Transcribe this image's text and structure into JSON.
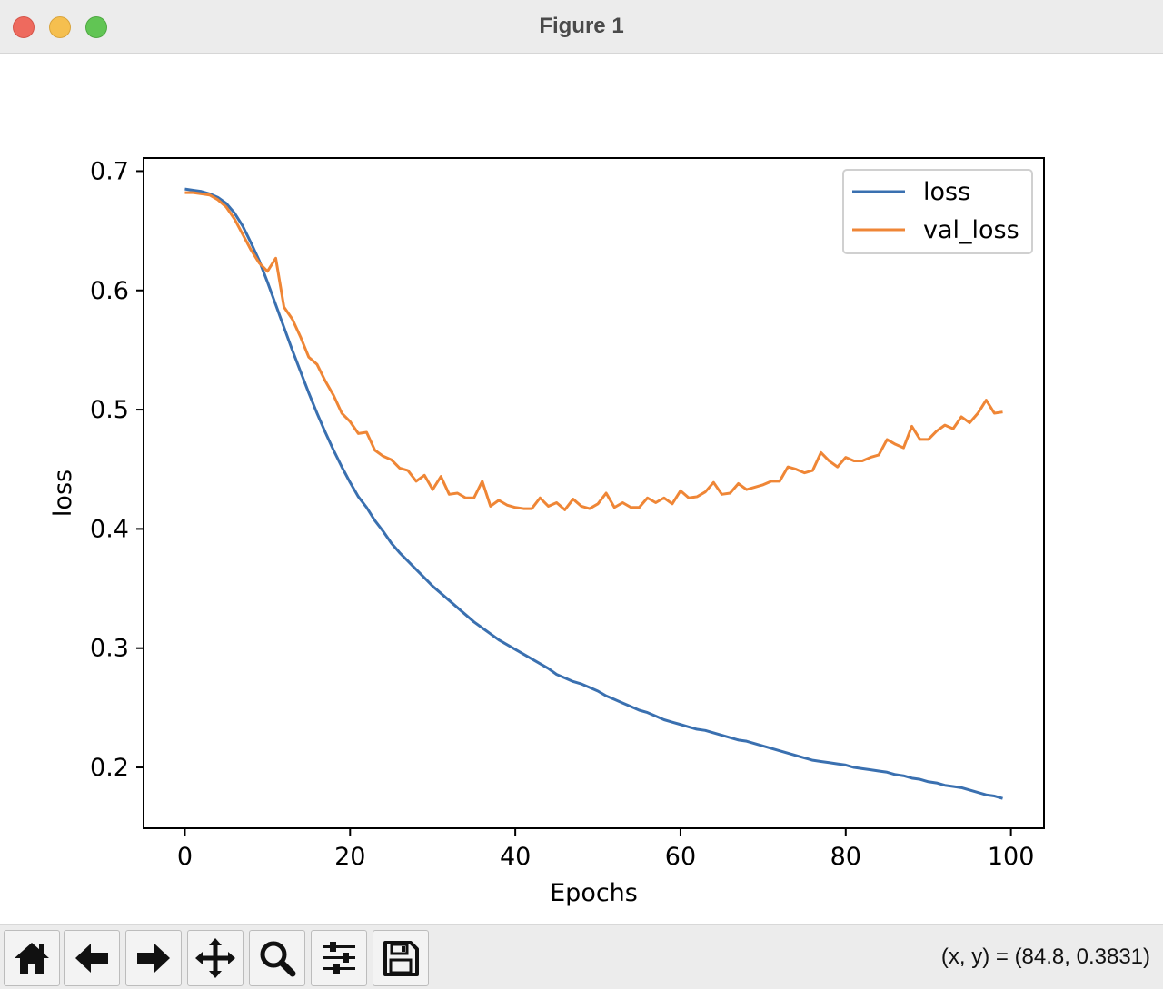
{
  "window": {
    "title": "Figure 1"
  },
  "toolbar": {
    "buttons": [
      {
        "icon": "home-icon",
        "name": "home-button"
      },
      {
        "icon": "arrow-left-icon",
        "name": "back-button"
      },
      {
        "icon": "arrow-right-icon",
        "name": "forward-button"
      },
      {
        "icon": "move-icon",
        "name": "pan-button"
      },
      {
        "icon": "magnifier-icon",
        "name": "zoom-button"
      },
      {
        "icon": "sliders-icon",
        "name": "configure-subplots-button"
      },
      {
        "icon": "floppy-disk-icon",
        "name": "save-button"
      }
    ],
    "coords": "(x, y) = (84.8, 0.3831)"
  },
  "colors": {
    "loss": "#3a70b0",
    "val_loss": "#ef8636"
  },
  "chart_data": {
    "type": "line",
    "title": "",
    "xlabel": "Epochs",
    "ylabel": "loss",
    "xlim": [
      -5,
      104
    ],
    "ylim": [
      0.149,
      0.711
    ],
    "xticks": [
      0,
      20,
      40,
      60,
      80,
      100
    ],
    "yticks": [
      0.2,
      0.3,
      0.4,
      0.5,
      0.6,
      0.7
    ],
    "xtick_labels": [
      "0",
      "20",
      "40",
      "60",
      "80",
      "100"
    ],
    "ytick_labels": [
      "0.2",
      "0.3",
      "0.4",
      "0.5",
      "0.6",
      "0.7"
    ],
    "grid": false,
    "legend_position": "top-right",
    "x": [
      0,
      1,
      2,
      3,
      4,
      5,
      6,
      7,
      8,
      9,
      10,
      11,
      12,
      13,
      14,
      15,
      16,
      17,
      18,
      19,
      20,
      21,
      22,
      23,
      24,
      25,
      26,
      27,
      28,
      29,
      30,
      31,
      32,
      33,
      34,
      35,
      36,
      37,
      38,
      39,
      40,
      41,
      42,
      43,
      44,
      45,
      46,
      47,
      48,
      49,
      50,
      51,
      52,
      53,
      54,
      55,
      56,
      57,
      58,
      59,
      60,
      61,
      62,
      63,
      64,
      65,
      66,
      67,
      68,
      69,
      70,
      71,
      72,
      73,
      74,
      75,
      76,
      77,
      78,
      79,
      80,
      81,
      82,
      83,
      84,
      85,
      86,
      87,
      88,
      89,
      90,
      91,
      92,
      93,
      94,
      95,
      96,
      97,
      98,
      99
    ],
    "series": [
      {
        "name": "loss",
        "values": [
          0.685,
          0.684,
          0.683,
          0.681,
          0.678,
          0.673,
          0.665,
          0.654,
          0.64,
          0.625,
          0.607,
          0.588,
          0.569,
          0.55,
          0.532,
          0.514,
          0.497,
          0.481,
          0.466,
          0.452,
          0.439,
          0.427,
          0.418,
          0.407,
          0.398,
          0.388,
          0.38,
          0.373,
          0.366,
          0.359,
          0.352,
          0.346,
          0.34,
          0.334,
          0.328,
          0.322,
          0.317,
          0.312,
          0.307,
          0.303,
          0.299,
          0.295,
          0.291,
          0.287,
          0.283,
          0.278,
          0.275,
          0.272,
          0.27,
          0.267,
          0.264,
          0.26,
          0.257,
          0.254,
          0.251,
          0.248,
          0.246,
          0.243,
          0.24,
          0.238,
          0.236,
          0.234,
          0.232,
          0.231,
          0.229,
          0.227,
          0.225,
          0.223,
          0.222,
          0.22,
          0.218,
          0.216,
          0.214,
          0.212,
          0.21,
          0.208,
          0.206,
          0.205,
          0.204,
          0.203,
          0.202,
          0.2,
          0.199,
          0.198,
          0.197,
          0.196,
          0.194,
          0.193,
          0.191,
          0.19,
          0.188,
          0.187,
          0.185,
          0.184,
          0.183,
          0.181,
          0.179,
          0.177,
          0.176,
          0.174
        ]
      },
      {
        "name": "val_loss",
        "values": [
          0.682,
          0.682,
          0.681,
          0.68,
          0.676,
          0.67,
          0.66,
          0.647,
          0.634,
          0.623,
          0.616,
          0.627,
          0.586,
          0.576,
          0.561,
          0.544,
          0.538,
          0.524,
          0.512,
          0.497,
          0.49,
          0.48,
          0.481,
          0.466,
          0.461,
          0.458,
          0.451,
          0.449,
          0.44,
          0.445,
          0.433,
          0.444,
          0.429,
          0.43,
          0.426,
          0.426,
          0.44,
          0.419,
          0.424,
          0.42,
          0.418,
          0.417,
          0.417,
          0.426,
          0.419,
          0.422,
          0.416,
          0.425,
          0.419,
          0.417,
          0.421,
          0.43,
          0.418,
          0.422,
          0.418,
          0.418,
          0.426,
          0.422,
          0.426,
          0.421,
          0.432,
          0.426,
          0.427,
          0.431,
          0.439,
          0.429,
          0.43,
          0.438,
          0.433,
          0.435,
          0.437,
          0.44,
          0.44,
          0.452,
          0.45,
          0.447,
          0.449,
          0.464,
          0.457,
          0.452,
          0.46,
          0.457,
          0.457,
          0.46,
          0.462,
          0.475,
          0.471,
          0.468,
          0.486,
          0.475,
          0.475,
          0.482,
          0.487,
          0.484,
          0.494,
          0.489,
          0.497,
          0.508,
          0.497,
          0.498
        ]
      }
    ]
  }
}
